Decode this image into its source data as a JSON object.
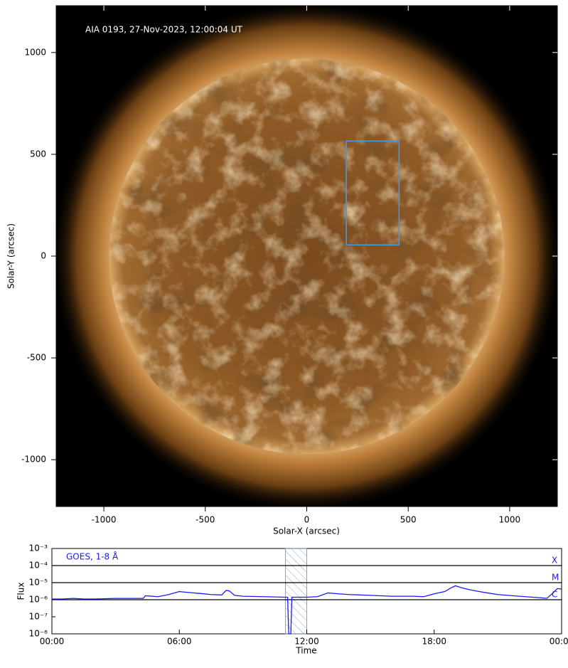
{
  "chart_data": [
    {
      "type": "image",
      "title": "AIA 0193, 27-Nov-2023, 12:00:04 UT",
      "xlabel": "Solar-X (arcsec)",
      "ylabel": "Solar-Y (arcsec)",
      "xlim": [
        -1235,
        1235
      ],
      "ylim": [
        -1230,
        1230
      ],
      "xticks": [
        -1000,
        -500,
        0,
        500,
        1000
      ],
      "yticks": [
        -1000,
        -500,
        0,
        500,
        1000
      ],
      "box": {
        "x": [
          195,
          455
        ],
        "y": [
          55,
          565
        ],
        "color": "#3f9be8"
      }
    },
    {
      "type": "line",
      "annotation": "GOES, 1-8 Å",
      "xlabel": "Time",
      "ylabel": "Flux",
      "log_y": true,
      "xlim": [
        0,
        24
      ],
      "ylim": [
        1e-08,
        0.001
      ],
      "xticks": [
        {
          "value": 0,
          "label": "00:00"
        },
        {
          "value": 6,
          "label": "06:00"
        },
        {
          "value": 12,
          "label": "12:00"
        },
        {
          "value": 18,
          "label": "18:00"
        },
        {
          "value": 24,
          "label": "00:00"
        }
      ],
      "yticks": [
        {
          "value": 1e-08,
          "label": "10⁻⁸"
        },
        {
          "value": 1e-07,
          "label": "10⁻⁷"
        },
        {
          "value": 1e-06,
          "label": "10⁻⁶"
        },
        {
          "value": 1e-05,
          "label": "10⁻⁵"
        },
        {
          "value": 0.0001,
          "label": "10⁻⁴"
        },
        {
          "value": 0.001,
          "label": "10⁻³"
        }
      ],
      "flare_classes": [
        {
          "label": "X",
          "value": 0.0001
        },
        {
          "label": "M",
          "value": 1e-05
        },
        {
          "label": "C",
          "value": 1e-06
        }
      ],
      "highlight": [
        11,
        12
      ],
      "x": [
        0,
        0.5,
        1,
        1.5,
        2,
        3,
        4,
        4.3,
        4.4,
        5,
        5.5,
        6,
        6.5,
        7,
        7.5,
        8,
        8.2,
        8.35,
        8.6,
        9,
        10,
        11,
        11.1,
        11.15,
        11.25,
        11.3,
        12,
        12.5,
        13,
        13.5,
        14,
        15,
        16,
        17,
        17.5,
        18,
        18.5,
        18.8,
        19,
        19.3,
        19.6,
        20,
        20.5,
        21,
        22,
        23,
        23.3,
        23.6,
        23.8,
        24
      ],
      "series": [
        {
          "color": "#1a1aff",
          "values": [
            1.1e-06,
            1.1e-06,
            1.2e-06,
            1.1e-06,
            1.1e-06,
            1.2e-06,
            1.2e-06,
            1.2e-06,
            1.7e-06,
            1.5e-06,
            2e-06,
            3e-06,
            2.6e-06,
            2.3e-06,
            2e-06,
            1.9e-06,
            3.5e-06,
            3.3e-06,
            1.8e-06,
            1.6e-06,
            1.5e-06,
            1.4e-06,
            1.4e-06,
            1e-08,
            1e-08,
            1.4e-06,
            1.4e-06,
            1.5e-06,
            2.5e-06,
            2.2e-06,
            2e-06,
            1.8e-06,
            1.6e-06,
            1.6e-06,
            1.5e-06,
            2.2e-06,
            3e-06,
            5e-06,
            6.5e-06,
            5e-06,
            4e-06,
            3.2e-06,
            2.5e-06,
            2e-06,
            1.6e-06,
            1.3e-06,
            1.2e-06,
            2.5e-06,
            4.5e-06,
            4.2e-06
          ]
        }
      ]
    }
  ]
}
